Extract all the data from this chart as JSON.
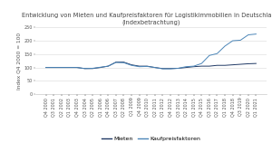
{
  "title": "Entwicklung von Mieten und Kaufpreisfaktoren für Logistikimmobilien in Deutschland\n(Indexbetrachtung)",
  "ylabel": "Index Q4 2000 = 100",
  "ylim": [
    0,
    250
  ],
  "yticks": [
    0,
    50,
    100,
    150,
    200,
    250
  ],
  "x_labels": [
    "Q4 2000",
    "Q3 2001",
    "Q2 2002",
    "Q1 2003",
    "Q4 2003",
    "Q3 2004",
    "Q2 2005",
    "Q1 2006",
    "Q4 2006",
    "Q3 2007",
    "Q2 2008",
    "Q1 2009",
    "Q4 2009",
    "Q3 2010",
    "Q2 2011",
    "Q1 2012",
    "Q4 2012",
    "Q3 2013",
    "Q2 2014",
    "Q1 2015",
    "Q4 2015",
    "Q3 2016",
    "Q2 2017",
    "Q1 2018",
    "Q4 2018",
    "Q3 2019",
    "Q2 2020",
    "Q1 2021"
  ],
  "mieten": [
    100,
    100,
    100,
    100,
    100,
    96,
    96,
    100,
    105,
    120,
    120,
    110,
    105,
    105,
    100,
    96,
    96,
    97,
    100,
    103,
    105,
    105,
    108,
    108,
    110,
    112,
    114,
    115
  ],
  "kaufpreisfaktoren": [
    100,
    100,
    100,
    100,
    100,
    96,
    97,
    101,
    105,
    119,
    118,
    108,
    103,
    104,
    100,
    95,
    95,
    97,
    103,
    105,
    115,
    145,
    152,
    180,
    200,
    202,
    222,
    225
  ],
  "mieten_color": "#1f3864",
  "kauf_color": "#4c86b8",
  "legend_labels": [
    "Mieten",
    "Kaufpreisfaktoren"
  ],
  "background_color": "#ffffff",
  "grid_color": "#d9d9d9",
  "title_fontsize": 4.8,
  "axis_fontsize": 4.2,
  "tick_fontsize": 3.5,
  "legend_fontsize": 4.5
}
